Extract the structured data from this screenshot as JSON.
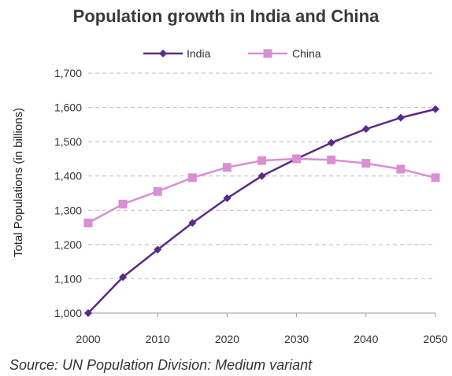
{
  "chart_data": {
    "type": "line",
    "title": "Population growth in India and China",
    "xlabel": "",
    "ylabel": "Total Populations (in billions)",
    "x": [
      2000,
      2005,
      2010,
      2015,
      2020,
      2025,
      2030,
      2035,
      2040,
      2045,
      2050
    ],
    "x_tick_labels": [
      "2000",
      "2010",
      "2020",
      "2030",
      "2040",
      "2050"
    ],
    "y_tick_labels": [
      "1,000",
      "1,100",
      "1,200",
      "1,300",
      "1,400",
      "1,500",
      "1,600",
      "1,700"
    ],
    "ylim": [
      1000,
      1700
    ],
    "xlim": [
      2000,
      2050
    ],
    "grid": "horizontal-dashed",
    "legend_position": "top-center",
    "series": [
      {
        "name": "India",
        "color": "#5b2a86",
        "marker": "diamond",
        "values": [
          1000,
          1105,
          1185,
          1263,
          1335,
          1400,
          1450,
          1497,
          1537,
          1570,
          1595
        ]
      },
      {
        "name": "China",
        "color": "#d98fd3",
        "marker": "square",
        "values": [
          1263,
          1318,
          1355,
          1395,
          1425,
          1445,
          1450,
          1447,
          1437,
          1420,
          1395
        ]
      }
    ],
    "source": "Source: UN Population Division: Medium variant"
  }
}
